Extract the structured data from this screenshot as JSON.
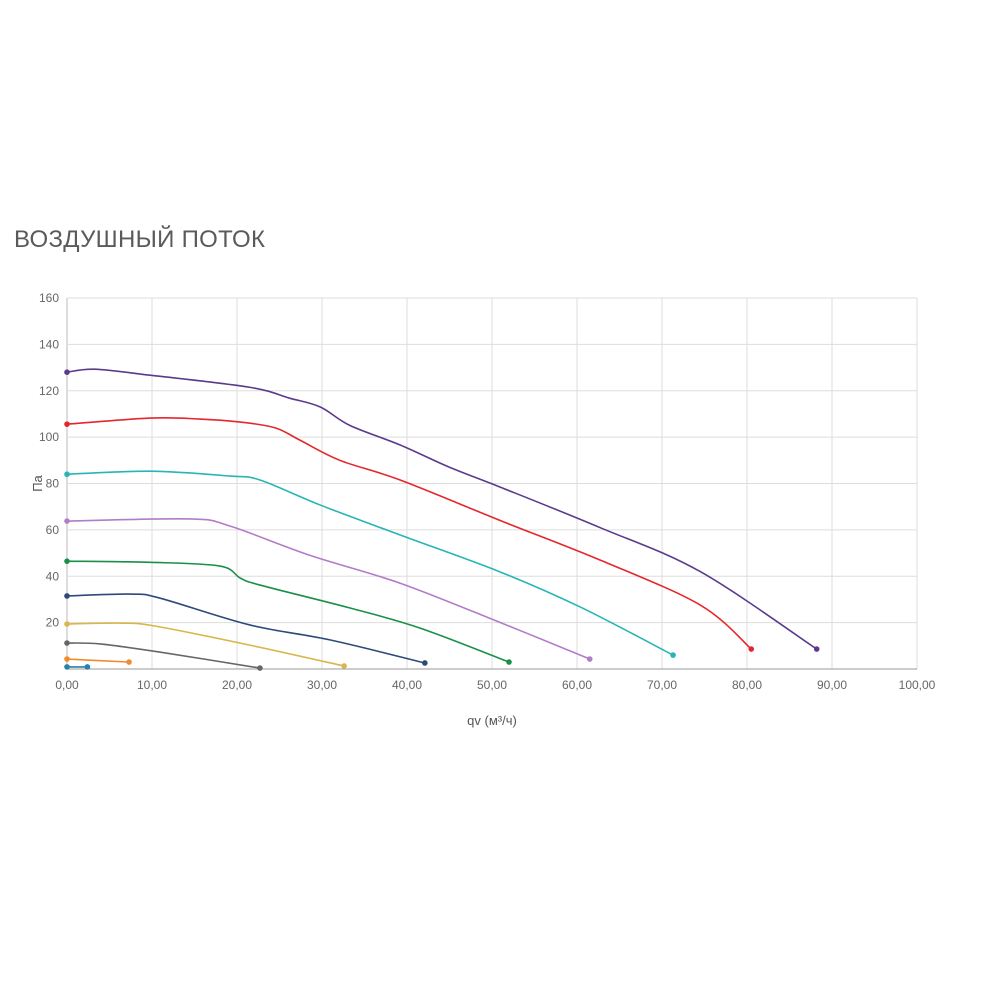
{
  "chart_data": {
    "type": "line",
    "title": "ВОЗДУШНЫЙ ПОТОК",
    "xlabel": "qv (м³/ч)",
    "ylabel": "Па",
    "xlim": [
      0,
      100
    ],
    "ylim": [
      0,
      160
    ],
    "xticks": [
      "0,00",
      "10,00",
      "20,00",
      "30,00",
      "40,00",
      "50,00",
      "60,00",
      "70,00",
      "80,00",
      "90,00",
      "100,00"
    ],
    "yticks": [
      "20",
      "40",
      "60",
      "80",
      "100",
      "120",
      "140",
      "160"
    ],
    "grid": true,
    "series": [
      {
        "color": "#5b3a8c",
        "points": [
          [
            0,
            128
          ],
          [
            3.3,
            129.3
          ],
          [
            9.8,
            126.7
          ],
          [
            21.5,
            121.5
          ],
          [
            26.2,
            116.8
          ],
          [
            29.8,
            113
          ],
          [
            33.3,
            105
          ],
          [
            39.2,
            96.6
          ],
          [
            45,
            87
          ],
          [
            51,
            78.4
          ],
          [
            62.7,
            61
          ],
          [
            74.5,
            42
          ],
          [
            88.2,
            8.6
          ]
        ]
      },
      {
        "color": "#e5262b",
        "points": [
          [
            0,
            105.6
          ],
          [
            9.8,
            108.2
          ],
          [
            15.6,
            107.8
          ],
          [
            20.4,
            106.5
          ],
          [
            24.5,
            104
          ],
          [
            27.4,
            98.7
          ],
          [
            32.1,
            90
          ],
          [
            39.2,
            81.5
          ],
          [
            51,
            64
          ],
          [
            62.7,
            47
          ],
          [
            74.5,
            27.6
          ],
          [
            80.5,
            8.6
          ]
        ]
      },
      {
        "color": "#27b5b5",
        "points": [
          [
            0,
            84
          ],
          [
            9.8,
            85.3
          ],
          [
            19.2,
            83.2
          ],
          [
            22.7,
            81.5
          ],
          [
            29.8,
            70.7
          ],
          [
            39.2,
            57.8
          ],
          [
            51,
            41.8
          ],
          [
            60.4,
            26.7
          ],
          [
            71.3,
            6
          ]
        ]
      },
      {
        "color": "#b27cc9",
        "points": [
          [
            0,
            63.8
          ],
          [
            14.5,
            64.7
          ],
          [
            19.2,
            61.6
          ],
          [
            28.6,
            49
          ],
          [
            39.2,
            37
          ],
          [
            51,
            20
          ],
          [
            61.5,
            4.3
          ]
        ]
      },
      {
        "color": "#1a8f4a",
        "points": [
          [
            0,
            46.5
          ],
          [
            9.8,
            46
          ],
          [
            18,
            44.4
          ],
          [
            20.4,
            39.2
          ],
          [
            22.7,
            36.2
          ],
          [
            33.3,
            26.3
          ],
          [
            41.5,
            17.7
          ],
          [
            52,
            3
          ]
        ]
      },
      {
        "color": "#2d4a7a",
        "points": [
          [
            0,
            31.5
          ],
          [
            7.4,
            32.3
          ],
          [
            10.9,
            30.6
          ],
          [
            21.5,
            19
          ],
          [
            31,
            12.5
          ],
          [
            42.1,
            2.6
          ]
        ]
      },
      {
        "color": "#d9b64a",
        "points": [
          [
            0,
            19.4
          ],
          [
            6.2,
            19.8
          ],
          [
            10.4,
            18.5
          ],
          [
            21.5,
            10.3
          ],
          [
            32.6,
            1.3
          ]
        ]
      },
      {
        "color": "#666666",
        "points": [
          [
            0,
            11.2
          ],
          [
            3.9,
            10.8
          ],
          [
            10.9,
            7.3
          ],
          [
            22.7,
            0.4
          ]
        ]
      },
      {
        "color": "#f28a2e",
        "points": [
          [
            0,
            4.3
          ],
          [
            7.3,
            3
          ]
        ]
      },
      {
        "color": "#2a7fb0",
        "points": [
          [
            0,
            0.9
          ],
          [
            2.4,
            0.9
          ]
        ]
      }
    ]
  }
}
